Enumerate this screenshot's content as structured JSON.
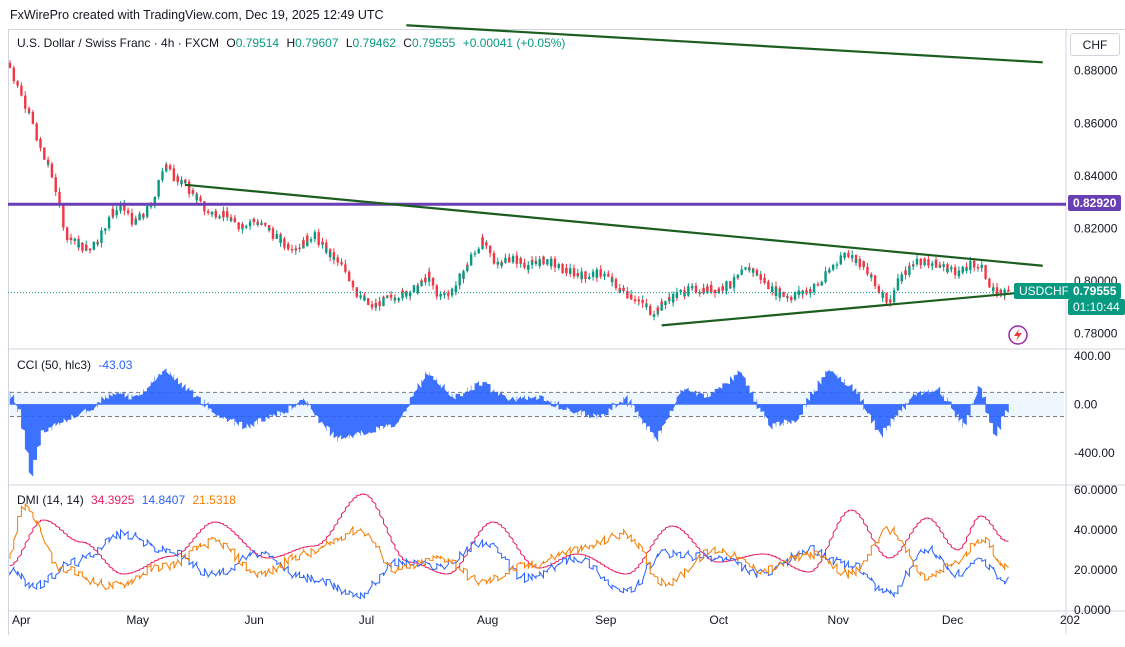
{
  "header": {
    "caption": "FxWirePro created with TradingView.com, Dec 19, 2025 12:49 UTC"
  },
  "main_legend": {
    "symbol": "U.S. Dollar / Swiss Franc · 4h · FXCM",
    "o_label": "O",
    "o": "0.79514",
    "h_label": "H",
    "h": "0.79607",
    "l_label": "L",
    "l": "0.79462",
    "c_label": "C",
    "c": "0.79555",
    "change": "+0.00041 (+0.05%)"
  },
  "currency_button": "CHF",
  "tags": {
    "level": "0.82920",
    "symbol": "USDCHF",
    "price": "0.79555",
    "countdown": "01:10:44"
  },
  "cci_legend": {
    "name": "CCI (50, hlc3)",
    "value": "-43.03"
  },
  "dmi_legend": {
    "name": "DMI (14, 14)",
    "adx": "34.3925",
    "di_plus": "14.8407",
    "di_minus": "21.5318"
  },
  "colors": {
    "up": "#089981",
    "down": "#f23645",
    "trend": "#1b5e20",
    "level": "#6a3fb5",
    "cci": "#2962ff",
    "adx": "#e91e63",
    "di_plus": "#2962ff",
    "di_minus": "#f57c00"
  },
  "chart_data": [
    {
      "type": "candlestick",
      "title": "U.S. Dollar / Swiss Franc · 4h · FXCM",
      "x_ticks": [
        "Apr",
        "May",
        "Jun",
        "Jul",
        "Aug",
        "Sep",
        "Oct",
        "Nov",
        "Dec",
        "202"
      ],
      "y_ticks": [
        "0.88000",
        "0.86000",
        "0.84000",
        "0.82000",
        "0.80000",
        "0.78000"
      ],
      "ylim": [
        0.7745,
        0.8955
      ],
      "close_path": [
        [
          "2025-04-01",
          0.883
        ],
        [
          "2025-04-04",
          0.872
        ],
        [
          "2025-04-07",
          0.862
        ],
        [
          "2025-04-10",
          0.848
        ],
        [
          "2025-04-13",
          0.838
        ],
        [
          "2025-04-16",
          0.818
        ],
        [
          "2025-04-19",
          0.814
        ],
        [
          "2025-04-22",
          0.812
        ],
        [
          "2025-04-25",
          0.817
        ],
        [
          "2025-04-28",
          0.826
        ],
        [
          "2025-05-01",
          0.828
        ],
        [
          "2025-05-04",
          0.822
        ],
        [
          "2025-05-07",
          0.826
        ],
        [
          "2025-05-10",
          0.834
        ],
        [
          "2025-05-12",
          0.846
        ],
        [
          "2025-05-14",
          0.84
        ],
        [
          "2025-05-17",
          0.837
        ],
        [
          "2025-05-20",
          0.832
        ],
        [
          "2025-05-23",
          0.826
        ],
        [
          "2025-05-27",
          0.826
        ],
        [
          "2025-05-31",
          0.821
        ],
        [
          "2025-06-04",
          0.823
        ],
        [
          "2025-06-08",
          0.82
        ],
        [
          "2025-06-12",
          0.814
        ],
        [
          "2025-06-16",
          0.813
        ],
        [
          "2025-06-20",
          0.818
        ],
        [
          "2025-06-24",
          0.81
        ],
        [
          "2025-06-28",
          0.805
        ],
        [
          "2025-07-02",
          0.794
        ],
        [
          "2025-07-05",
          0.79
        ],
        [
          "2025-07-09",
          0.793
        ],
        [
          "2025-07-13",
          0.795
        ],
        [
          "2025-07-17",
          0.797
        ],
        [
          "2025-07-20",
          0.802
        ],
        [
          "2025-07-23",
          0.794
        ],
        [
          "2025-07-27",
          0.797
        ],
        [
          "2025-07-31",
          0.808
        ],
        [
          "2025-08-03",
          0.815
        ],
        [
          "2025-08-07",
          0.807
        ],
        [
          "2025-08-11",
          0.809
        ],
        [
          "2025-08-15",
          0.806
        ],
        [
          "2025-08-20",
          0.808
        ],
        [
          "2025-08-25",
          0.804
        ],
        [
          "2025-08-30",
          0.802
        ],
        [
          "2025-09-04",
          0.803
        ],
        [
          "2025-09-08",
          0.797
        ],
        [
          "2025-09-12",
          0.794
        ],
        [
          "2025-09-17",
          0.788
        ],
        [
          "2025-09-20",
          0.792
        ],
        [
          "2025-09-25",
          0.796
        ],
        [
          "2025-09-30",
          0.797
        ],
        [
          "2025-10-04",
          0.797
        ],
        [
          "2025-10-08",
          0.799
        ],
        [
          "2025-10-12",
          0.805
        ],
        [
          "2025-10-15",
          0.802
        ],
        [
          "2025-10-19",
          0.796
        ],
        [
          "2025-10-23",
          0.794
        ],
        [
          "2025-10-27",
          0.796
        ],
        [
          "2025-10-31",
          0.799
        ],
        [
          "2025-11-04",
          0.807
        ],
        [
          "2025-11-07",
          0.811
        ],
        [
          "2025-11-11",
          0.806
        ],
        [
          "2025-11-15",
          0.797
        ],
        [
          "2025-11-18",
          0.792
        ],
        [
          "2025-11-21",
          0.801
        ],
        [
          "2025-11-25",
          0.808
        ],
        [
          "2025-11-29",
          0.807
        ],
        [
          "2025-12-03",
          0.805
        ],
        [
          "2025-12-07",
          0.803
        ],
        [
          "2025-12-10",
          0.807
        ],
        [
          "2025-12-13",
          0.804
        ],
        [
          "2025-12-15",
          0.796
        ],
        [
          "2025-12-19",
          0.7955
        ]
      ],
      "horizontal_level": 0.8292,
      "trendlines": [
        {
          "from": [
            "2025-05-17",
            0.8366
          ],
          "to": [
            "2025-12-28",
            0.8058
          ]
        },
        {
          "from": [
            "2025-09-19",
            0.7831
          ],
          "to": [
            "2025-12-28",
            0.7963
          ]
        },
        {
          "from": [
            "2025-07-14",
            0.8973
          ],
          "to": [
            "2025-12-28",
            0.8832
          ]
        }
      ]
    },
    {
      "type": "line",
      "title": "CCI (50, hlc3)",
      "y_ticks": [
        "400.00",
        "0.00",
        "-400.00"
      ],
      "ylim": [
        -650,
        450
      ],
      "band": [
        100,
        -100
      ],
      "series": [
        {
          "name": "CCI",
          "x": [
            "2025-04-01",
            "2025-04-04",
            "2025-04-07",
            "2025-04-10",
            "2025-04-15",
            "2025-04-22",
            "2025-04-28",
            "2025-05-05",
            "2025-05-12",
            "2025-05-18",
            "2025-05-25",
            "2025-06-02",
            "2025-06-10",
            "2025-06-18",
            "2025-06-26",
            "2025-07-04",
            "2025-07-12",
            "2025-07-20",
            "2025-07-27",
            "2025-08-03",
            "2025-08-10",
            "2025-08-18",
            "2025-08-26",
            "2025-09-03",
            "2025-09-10",
            "2025-09-18",
            "2025-09-25",
            "2025-10-02",
            "2025-10-10",
            "2025-10-18",
            "2025-10-25",
            "2025-11-02",
            "2025-11-09",
            "2025-11-16",
            "2025-11-24",
            "2025-12-01",
            "2025-12-08",
            "2025-12-12",
            "2025-12-16",
            "2025-12-19"
          ],
          "values": [
            100,
            -60,
            -580,
            -220,
            -140,
            -40,
            80,
            60,
            280,
            120,
            -60,
            -180,
            -80,
            20,
            -280,
            -220,
            -150,
            260,
            40,
            180,
            30,
            60,
            -40,
            -100,
            50,
            -280,
            120,
            60,
            260,
            -180,
            -120,
            280,
            120,
            -250,
            60,
            120,
            -180,
            150,
            -260,
            -43.03
          ]
        }
      ]
    },
    {
      "type": "line",
      "title": "DMI (14, 14)",
      "y_ticks": [
        "60.0000",
        "40.0000",
        "20.0000",
        "0.0000"
      ],
      "ylim": [
        0,
        62
      ],
      "series": [
        {
          "name": "ADX",
          "x": [
            "2025-04-01",
            "2025-04-10",
            "2025-04-20",
            "2025-05-01",
            "2025-05-14",
            "2025-05-25",
            "2025-06-08",
            "2025-06-20",
            "2025-07-03",
            "2025-07-15",
            "2025-07-25",
            "2025-08-06",
            "2025-08-18",
            "2025-08-28",
            "2025-09-10",
            "2025-09-22",
            "2025-10-04",
            "2025-10-16",
            "2025-10-28",
            "2025-11-08",
            "2025-11-18",
            "2025-11-28",
            "2025-12-06",
            "2025-12-12",
            "2025-12-19"
          ],
          "values": [
            22,
            45,
            34,
            18,
            27,
            44,
            26,
            32,
            58,
            24,
            18,
            44,
            21,
            28,
            18,
            42,
            24,
            28,
            19,
            50,
            26,
            46,
            30,
            47,
            34.3925
          ]
        },
        {
          "name": "DI+",
          "x": [
            "2025-04-01",
            "2025-04-08",
            "2025-04-18",
            "2025-05-01",
            "2025-05-12",
            "2025-05-25",
            "2025-06-05",
            "2025-06-18",
            "2025-07-02",
            "2025-07-12",
            "2025-07-24",
            "2025-08-03",
            "2025-08-15",
            "2025-08-28",
            "2025-09-10",
            "2025-09-20",
            "2025-10-04",
            "2025-10-16",
            "2025-10-28",
            "2025-11-08",
            "2025-11-18",
            "2025-11-28",
            "2025-12-06",
            "2025-12-12",
            "2025-12-19"
          ],
          "values": [
            20,
            12,
            24,
            38,
            30,
            18,
            28,
            16,
            8,
            24,
            22,
            34,
            16,
            26,
            9,
            28,
            26,
            18,
            30,
            22,
            8,
            30,
            18,
            24,
            14.8407
          ]
        },
        {
          "name": "DI-",
          "x": [
            "2025-04-01",
            "2025-04-05",
            "2025-04-15",
            "2025-04-28",
            "2025-05-12",
            "2025-05-25",
            "2025-06-06",
            "2025-06-18",
            "2025-07-02",
            "2025-07-12",
            "2025-07-24",
            "2025-08-03",
            "2025-08-15",
            "2025-08-28",
            "2025-09-10",
            "2025-09-20",
            "2025-10-04",
            "2025-10-16",
            "2025-10-28",
            "2025-11-08",
            "2025-11-18",
            "2025-11-28",
            "2025-12-06",
            "2025-12-12",
            "2025-12-19"
          ],
          "values": [
            28,
            52,
            20,
            12,
            22,
            34,
            18,
            28,
            40,
            20,
            26,
            14,
            22,
            30,
            38,
            14,
            30,
            20,
            28,
            18,
            40,
            16,
            24,
            36,
            21.5318
          ]
        }
      ]
    }
  ]
}
